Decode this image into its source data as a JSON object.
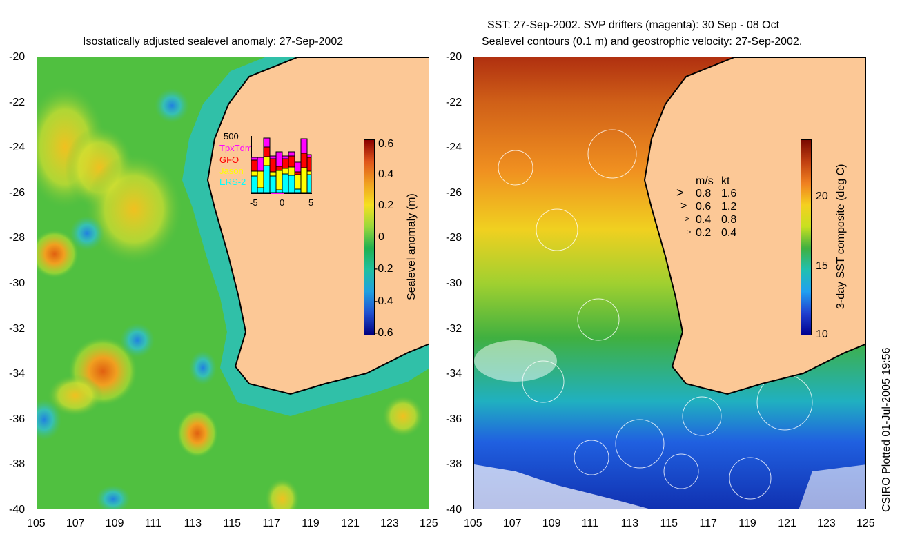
{
  "left_panel": {
    "title": "Isostatically adjusted sealevel anomaly: 27-Sep-2002",
    "colorbar": {
      "label": "Sealevel anomaly (m)",
      "ticks": [
        "0.6",
        "0.4",
        "0.2",
        "0",
        "-0.2",
        "-0.4",
        "-0.6"
      ],
      "colors": [
        "#8b0000",
        "#e0561a",
        "#f0a020",
        "#f5e020",
        "#9ad83a",
        "#20b050",
        "#20c0a0",
        "#20a0e0",
        "#2050d0",
        "#000080"
      ]
    },
    "inset": {
      "ymax_label": "500",
      "legend": [
        {
          "label": "TpxTdm",
          "color": "#ff00ff"
        },
        {
          "label": "GFO",
          "color": "#ff0000"
        },
        {
          "label": "Jason",
          "color": "#ffff00"
        },
        {
          "label": "ERS-2",
          "color": "#00ffff"
        }
      ],
      "xticks": [
        "-5",
        "0",
        "5"
      ]
    }
  },
  "right_panel": {
    "title_line1": "SST: 27-Sep-2002. SVP drifters (magenta): 30 Sep - 08 Oct",
    "title_line2": "Sealevel contours (0.1 m) and geostrophic velocity: 27-Sep-2002.",
    "colorbar": {
      "label": "3-day SST composite (deg C)",
      "ticks": [
        "20",
        "15",
        "10"
      ],
      "colors": [
        "#7a0a00",
        "#c04010",
        "#f08020",
        "#f5d020",
        "#c8e020",
        "#40b040",
        "#20c0b0",
        "#20a0f0",
        "#2040d0",
        "#000090"
      ]
    },
    "velocity_legend": {
      "header_ms": "m/s",
      "header_kt": "kt",
      "rows": [
        {
          "ms": "0.8",
          "kt": "1.6"
        },
        {
          "ms": "0.6",
          "kt": "1.2"
        },
        {
          "ms": "0.4",
          "kt": "0.8"
        },
        {
          "ms": "0.2",
          "kt": "0.4"
        }
      ]
    }
  },
  "axes": {
    "lat_ticks": [
      "-20",
      "-22",
      "-24",
      "-26",
      "-28",
      "-30",
      "-32",
      "-34",
      "-36",
      "-38",
      "-40"
    ],
    "lon_ticks": [
      "105",
      "107",
      "109",
      "111",
      "113",
      "115",
      "117",
      "119",
      "121",
      "123",
      "125"
    ]
  },
  "colors": {
    "land": "#fcc896",
    "shelf": "#30c0a0"
  },
  "credit": "CSIRO Plotted 01-Jul-2005 19:56"
}
